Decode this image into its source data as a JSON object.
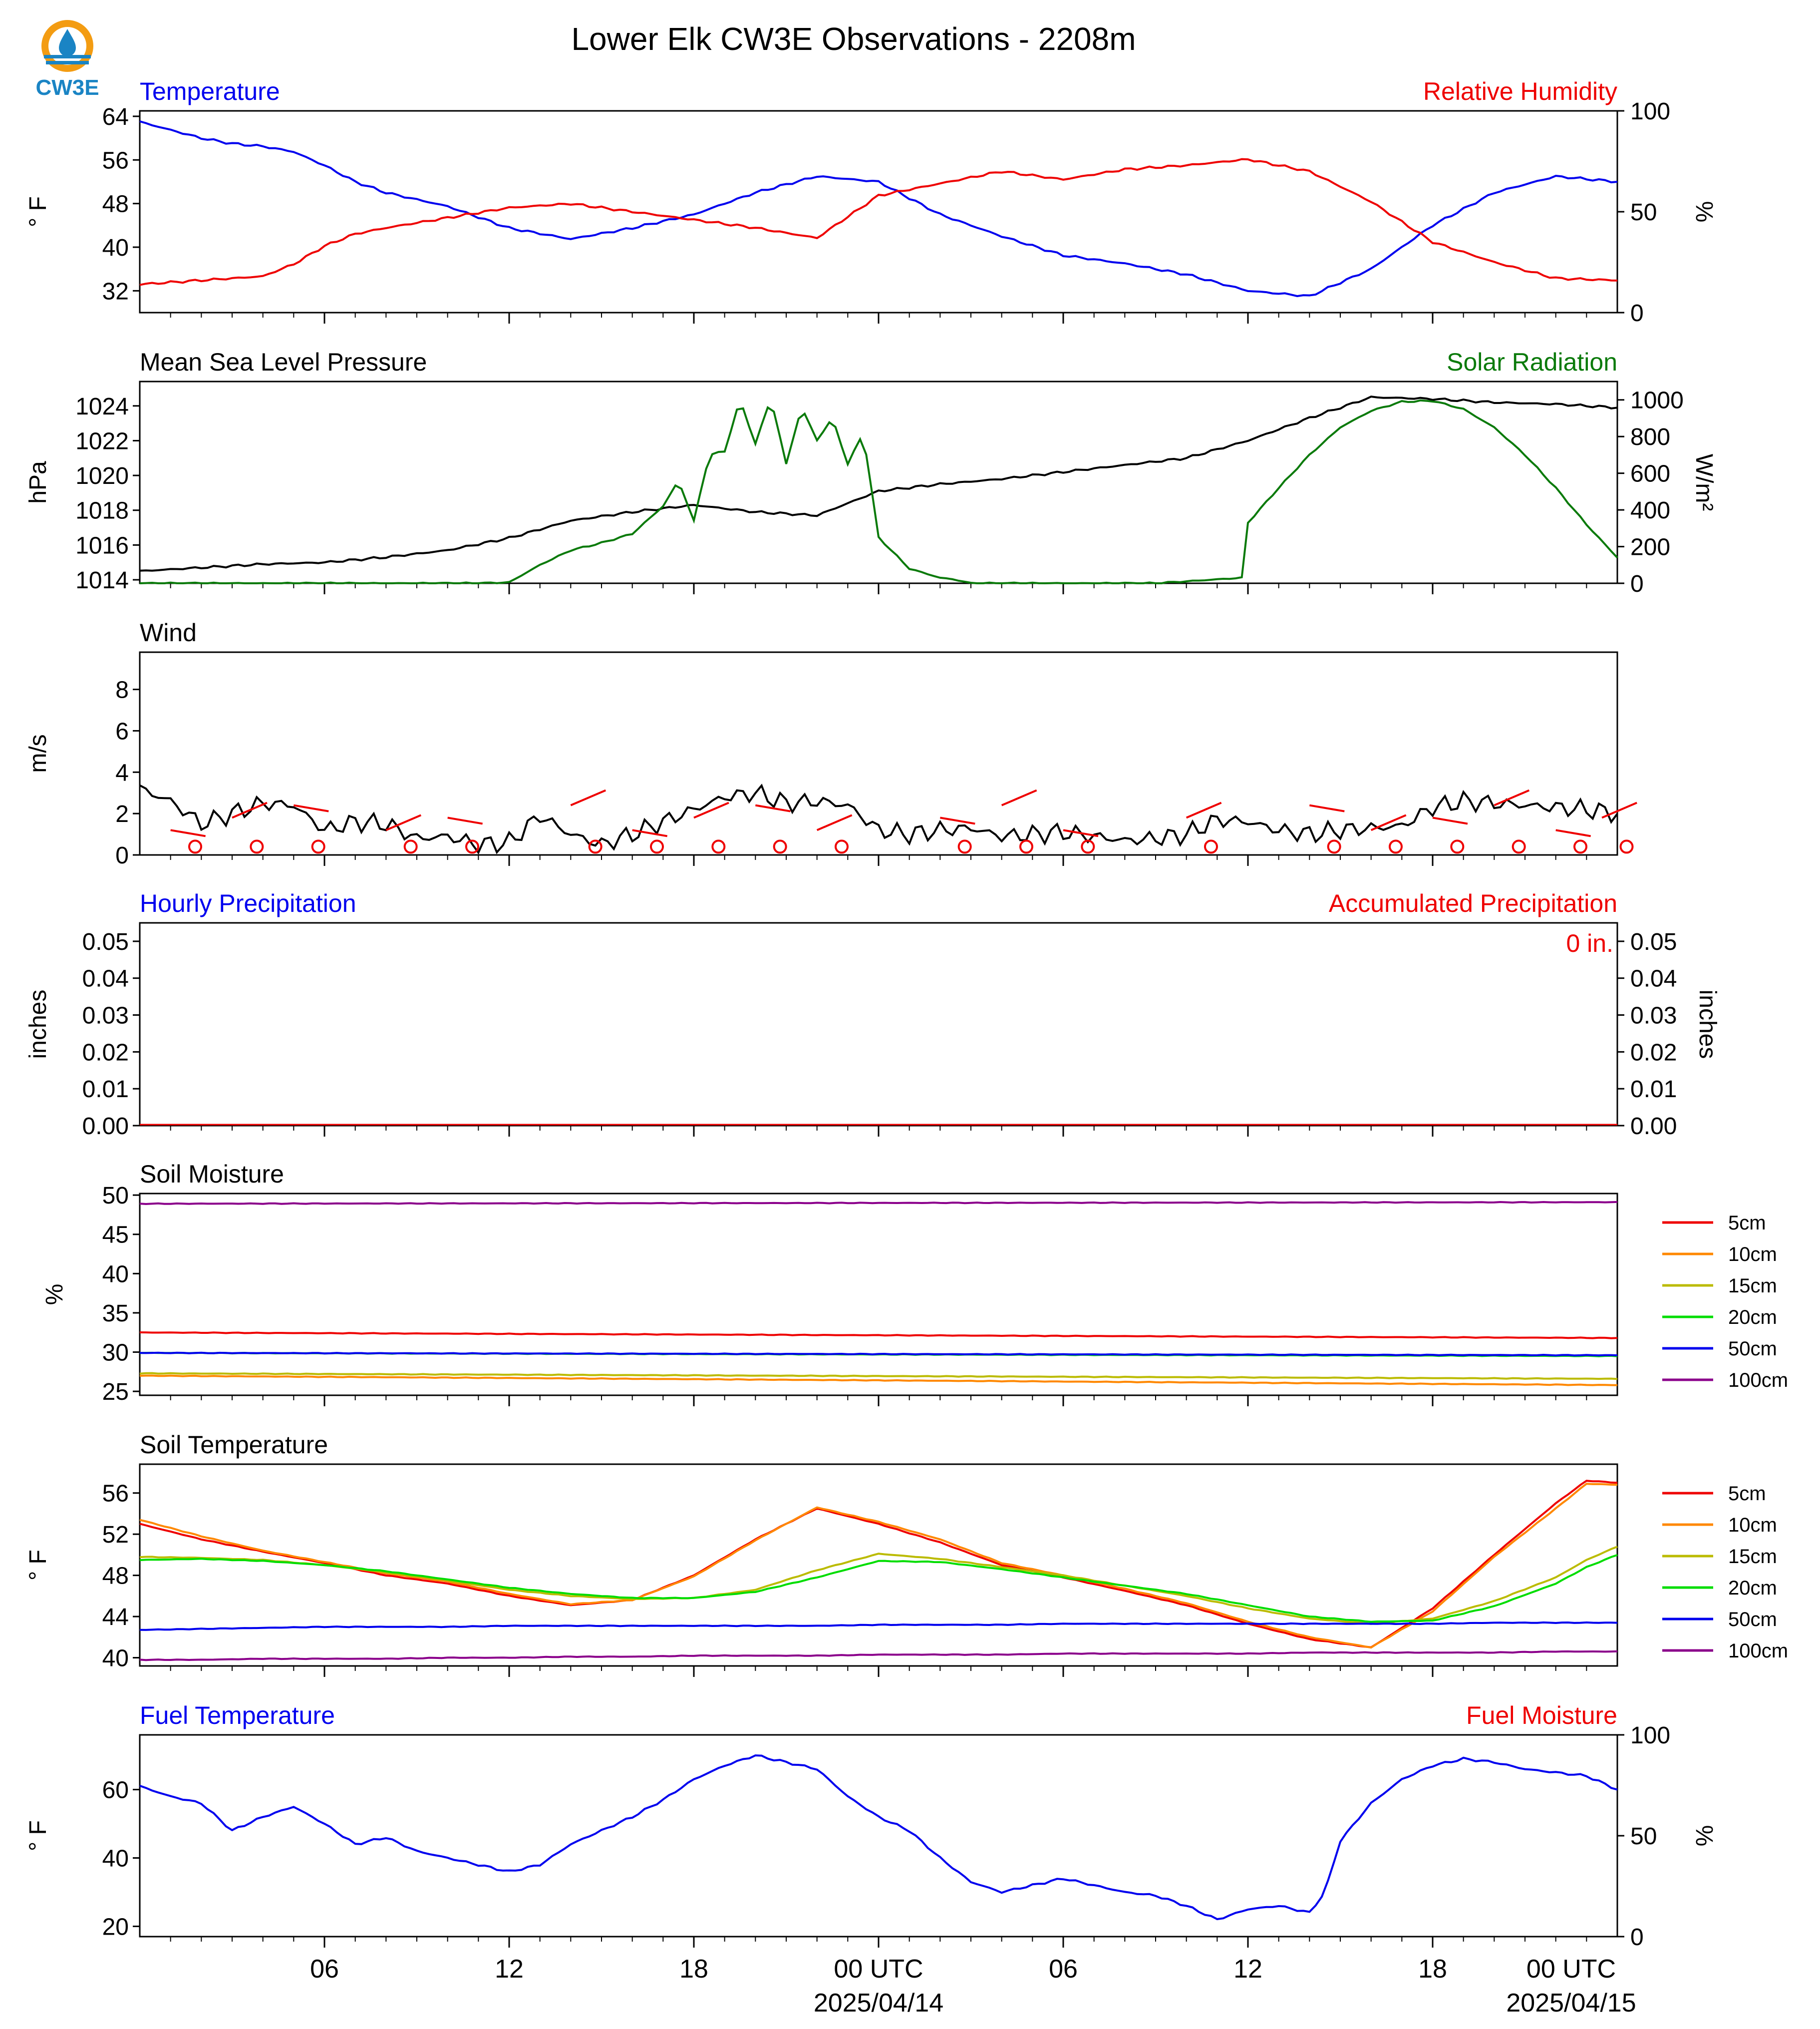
{
  "logo": {
    "text": "CW3E",
    "colors": {
      "ring": "#f39c12",
      "drop": "#1a84c4",
      "text": "#1a84c4"
    }
  },
  "title": "Lower Elk CW3E Observations - 2208m",
  "time_axis": {
    "ticks": [
      "06",
      "12",
      "18",
      "00 UTC",
      "06",
      "12",
      "18",
      "00 UTC"
    ],
    "dates": [
      "2025/04/14",
      "2025/04/15"
    ]
  },
  "colors": {
    "blue": "#0000ee",
    "red": "#ee0000",
    "green": "#0a7a0a",
    "black": "#000000",
    "purple": "#8b008b"
  },
  "chart_data": [
    {
      "type": "line",
      "left_title": "Temperature",
      "right_title": "Relative Humidity",
      "ylabel": "° F",
      "y2label": "%",
      "ylim": [
        28,
        65
      ],
      "y2lim": [
        0,
        100
      ],
      "yticks": [
        "32",
        "40",
        "48",
        "56",
        "64"
      ],
      "y2ticks": [
        "0",
        "50",
        "100"
      ],
      "x_hours": [
        0,
        1,
        2,
        3,
        4,
        5,
        6,
        7,
        8,
        10,
        12,
        14,
        16,
        18,
        20,
        22,
        24,
        26,
        28,
        30,
        32,
        34,
        36,
        38,
        40,
        42,
        44,
        46,
        48
      ],
      "series": [
        {
          "name": "Temperature",
          "color": "#0000ee",
          "values": [
            63,
            61.5,
            60,
            59,
            58.5,
            57.5,
            55,
            52,
            50,
            47.5,
            43.5,
            41.5,
            43.5,
            46,
            50,
            53,
            52,
            46,
            42,
            38.5,
            37,
            35,
            32,
            31,
            36,
            44,
            50,
            53,
            52
          ]
        },
        {
          "name": "Relative Humidity",
          "color": "#ee0000",
          "axis": "right",
          "values": [
            14,
            15,
            16,
            17,
            18,
            24,
            33,
            39,
            42,
            47,
            52,
            54,
            50,
            46,
            42,
            37,
            58,
            64,
            70,
            66,
            71,
            73,
            76,
            70,
            55,
            35,
            25,
            17,
            16
          ]
        }
      ]
    },
    {
      "type": "line",
      "left_title": "Mean Sea Level Pressure",
      "right_title": "Solar Radiation",
      "ylabel": "hPa",
      "y2label": "W/m²",
      "ylim": [
        1013.8,
        1025.4
      ],
      "y2lim": [
        0,
        1100
      ],
      "yticks": [
        "1014",
        "1016",
        "1018",
        "1020",
        "1022",
        "1024"
      ],
      "y2ticks": [
        "0",
        "200",
        "400",
        "600",
        "800",
        "1000"
      ],
      "x_hours": [
        0,
        2,
        4,
        6,
        8,
        10,
        12,
        14,
        16,
        18,
        20,
        22,
        24,
        26,
        28,
        30,
        32,
        34,
        36,
        38,
        40,
        42,
        44,
        46,
        48
      ],
      "series": [
        {
          "name": "Mean Sea Level Pressure",
          "color": "#000000",
          "values": [
            1014.5,
            1014.7,
            1014.9,
            1015.0,
            1015.3,
            1015.7,
            1016.4,
            1017.4,
            1017.9,
            1018.3,
            1017.9,
            1017.7,
            1019.1,
            1019.5,
            1019.8,
            1020.2,
            1020.6,
            1021.0,
            1022.0,
            1023.3,
            1024.5,
            1024.4,
            1024.2,
            1024.1,
            1023.9
          ]
        },
        {
          "name": "Solar Radiation",
          "color": "#0a7a0a",
          "axis": "right",
          "x_hours": [
            0,
            11,
            12,
            13,
            14,
            15,
            16,
            17,
            17.5,
            18,
            18.5,
            19,
            19.5,
            20,
            20.5,
            21,
            21.5,
            22,
            22.5,
            23,
            23.5,
            24,
            25,
            26,
            26.5,
            27,
            30,
            33,
            35.8,
            36,
            37,
            38,
            39,
            40,
            41,
            42,
            43,
            44,
            45,
            46,
            47,
            48
          ],
          "values": [
            0,
            0,
            5,
            100,
            180,
            220,
            270,
            420,
            560,
            340,
            700,
            720,
            1000,
            760,
            1010,
            650,
            960,
            780,
            900,
            650,
            820,
            250,
            80,
            30,
            20,
            0,
            0,
            0,
            30,
            330,
            520,
            700,
            850,
            940,
            990,
            995,
            950,
            850,
            700,
            520,
            320,
            140
          ]
        }
      ]
    },
    {
      "type": "line",
      "left_title": "Wind",
      "ylabel": "m/s",
      "ylim": [
        0,
        9.8
      ],
      "yticks": [
        "0",
        "2",
        "4",
        "6",
        "8"
      ],
      "x_hours": [
        0,
        1,
        2,
        3,
        4,
        5,
        6,
        7,
        8,
        9,
        10,
        11,
        12,
        13,
        14,
        15,
        16,
        17,
        18,
        19,
        20,
        21,
        22,
        23,
        24,
        25,
        26,
        27,
        28,
        29,
        30,
        31,
        32,
        33,
        34,
        35,
        36,
        37,
        38,
        39,
        40,
        41,
        42,
        43,
        44,
        45,
        46,
        47,
        48
      ],
      "series": [
        {
          "name": "Wind speed",
          "color": "#000000",
          "values": [
            3.2,
            2.6,
            1.5,
            2.0,
            2.5,
            2.4,
            1.2,
            1.6,
            1.5,
            0.8,
            0.9,
            0.5,
            0.6,
            1.9,
            1.0,
            0.5,
            1.0,
            1.6,
            2.2,
            2.8,
            3.0,
            2.5,
            2.6,
            2.4,
            1.2,
            1.0,
            1.2,
            1.3,
            0.9,
            1.0,
            1.1,
            0.9,
            0.7,
            0.8,
            1.0,
            1.7,
            1.6,
            1.2,
            1.0,
            1.2,
            1.3,
            1.4,
            2.3,
            2.6,
            2.5,
            2.4,
            2.3,
            2.2,
            2.0
          ]
        }
      ]
    },
    {
      "type": "bar",
      "left_title": "Hourly Precipitation",
      "right_title": "Accumulated Precipitation",
      "annotation": "0 in.",
      "ylabel": "inches",
      "y2label": "inches",
      "ylim": [
        0,
        0.055
      ],
      "y2lim": [
        0,
        0.055
      ],
      "yticks": [
        "0.00",
        "0.01",
        "0.02",
        "0.03",
        "0.04",
        "0.05"
      ],
      "y2ticks": [
        "0.00",
        "0.01",
        "0.02",
        "0.03",
        "0.04",
        "0.05"
      ],
      "series": [
        {
          "name": "Hourly Precipitation",
          "color": "#0000ee",
          "values": [
            0
          ]
        },
        {
          "name": "Accumulated Precipitation",
          "color": "#ee0000",
          "values": [
            0
          ]
        }
      ]
    },
    {
      "type": "line",
      "left_title": "Soil Moisture",
      "ylabel": "%",
      "ylim": [
        24.5,
        50.2
      ],
      "yticks": [
        "25",
        "30",
        "35",
        "40",
        "45",
        "50"
      ],
      "legend": [
        "5cm",
        "10cm",
        "15cm",
        "20cm",
        "50cm",
        "100cm"
      ],
      "x_hours": [
        0,
        48
      ],
      "series": [
        {
          "name": "5cm",
          "color": "#ee0000",
          "values": [
            32.5,
            31.8
          ]
        },
        {
          "name": "10cm",
          "color": "#ff8800",
          "values": [
            27.0,
            25.8
          ]
        },
        {
          "name": "15cm",
          "color": "#bbbb00",
          "values": [
            27.3,
            26.6
          ]
        },
        {
          "name": "20cm",
          "color": "#00dd00",
          "values": [
            29.9,
            29.5
          ]
        },
        {
          "name": "50cm",
          "color": "#0000ee",
          "values": [
            29.9,
            29.6
          ]
        },
        {
          "name": "100cm",
          "color": "#8b008b",
          "values": [
            48.9,
            49.1
          ]
        }
      ]
    },
    {
      "type": "line",
      "left_title": "Soil Temperature",
      "ylabel": "° F",
      "ylim": [
        39.2,
        58.8
      ],
      "yticks": [
        "40",
        "44",
        "48",
        "52",
        "56"
      ],
      "legend": [
        "5cm",
        "10cm",
        "15cm",
        "20cm",
        "50cm",
        "100cm"
      ],
      "x_hours": [
        0,
        2,
        4,
        6,
        8,
        10,
        12,
        14,
        16,
        18,
        20,
        22,
        24,
        26,
        28,
        30,
        32,
        34,
        36,
        38,
        40,
        42,
        44,
        46,
        47,
        48
      ],
      "series": [
        {
          "name": "5cm",
          "color": "#ee0000",
          "values": [
            53.0,
            51.5,
            50.3,
            49.2,
            48.0,
            47.2,
            46.0,
            45.1,
            45.6,
            48.0,
            51.5,
            54.5,
            53.0,
            51.2,
            49.0,
            47.8,
            46.5,
            45.1,
            43.3,
            41.8,
            41.0,
            44.8,
            50.0,
            55.0,
            57.2,
            57.0
          ]
        },
        {
          "name": "10cm",
          "color": "#ff8800",
          "values": [
            53.4,
            51.8,
            50.4,
            49.3,
            48.2,
            47.4,
            46.2,
            45.2,
            45.6,
            47.9,
            51.4,
            54.6,
            53.2,
            51.5,
            49.2,
            48.0,
            46.7,
            45.3,
            43.5,
            42.0,
            41.0,
            44.5,
            49.8,
            54.5,
            56.9,
            56.8
          ]
        },
        {
          "name": "15cm",
          "color": "#bbbb00",
          "values": [
            49.8,
            49.7,
            49.5,
            49.0,
            48.3,
            47.5,
            46.6,
            46.0,
            45.7,
            45.8,
            46.6,
            48.5,
            50.1,
            49.6,
            48.8,
            48.0,
            47.0,
            46.0,
            44.8,
            43.8,
            43.3,
            43.8,
            45.5,
            47.8,
            49.5,
            50.8
          ]
        },
        {
          "name": "20cm",
          "color": "#00dd00",
          "values": [
            49.5,
            49.6,
            49.4,
            49.0,
            48.4,
            47.6,
            46.8,
            46.2,
            45.8,
            45.8,
            46.4,
            47.8,
            49.4,
            49.3,
            48.6,
            47.8,
            47.0,
            46.2,
            45.1,
            44.0,
            43.5,
            43.6,
            45.0,
            47.2,
            48.8,
            50.0
          ]
        },
        {
          "name": "50cm",
          "color": "#0000ee",
          "values": [
            42.7,
            42.8,
            42.9,
            43.0,
            43.0,
            43.0,
            43.1,
            43.1,
            43.1,
            43.1,
            43.1,
            43.1,
            43.2,
            43.2,
            43.2,
            43.3,
            43.3,
            43.3,
            43.3,
            43.3,
            43.3,
            43.3,
            43.4,
            43.4,
            43.4,
            43.4
          ]
        },
        {
          "name": "100cm",
          "color": "#8b008b",
          "values": [
            39.8,
            39.8,
            39.9,
            39.9,
            39.9,
            40.0,
            40.0,
            40.1,
            40.1,
            40.2,
            40.2,
            40.2,
            40.3,
            40.3,
            40.3,
            40.4,
            40.4,
            40.4,
            40.4,
            40.5,
            40.5,
            40.5,
            40.5,
            40.6,
            40.6,
            40.6
          ]
        }
      ]
    },
    {
      "type": "line",
      "left_title": "Fuel Temperature",
      "right_title": "Fuel Moisture",
      "ylabel": "° F",
      "y2label": "%",
      "ylim": [
        17,
        76
      ],
      "y2lim": [
        0,
        100
      ],
      "yticks": [
        "20",
        "40",
        "60"
      ],
      "y2ticks": [
        "0",
        "50",
        "100"
      ],
      "x_hours": [
        0,
        1,
        2,
        3,
        4,
        5,
        6,
        7,
        8,
        9,
        10,
        11,
        12,
        13,
        14,
        15,
        16,
        17,
        18,
        19,
        20,
        21,
        22,
        23,
        24,
        25,
        26,
        27,
        28,
        29,
        30,
        31,
        32,
        33,
        34,
        35,
        36,
        37,
        38,
        38.5,
        39,
        40,
        41,
        42,
        43,
        44,
        45,
        46,
        47,
        48
      ],
      "series": [
        {
          "name": "Fuel Temperature",
          "color": "#0000ee",
          "values": [
            61,
            58,
            56,
            48,
            52,
            55,
            50,
            44,
            46,
            42,
            40,
            38,
            36,
            38,
            44,
            48,
            52,
            57,
            63,
            67,
            70,
            68,
            66,
            58,
            52,
            48,
            40,
            33,
            30,
            32,
            34,
            32,
            30,
            29,
            26,
            22,
            25,
            26,
            24,
            30,
            45,
            56,
            63,
            67,
            69,
            68,
            66,
            65,
            64,
            60
          ]
        }
      ]
    }
  ]
}
